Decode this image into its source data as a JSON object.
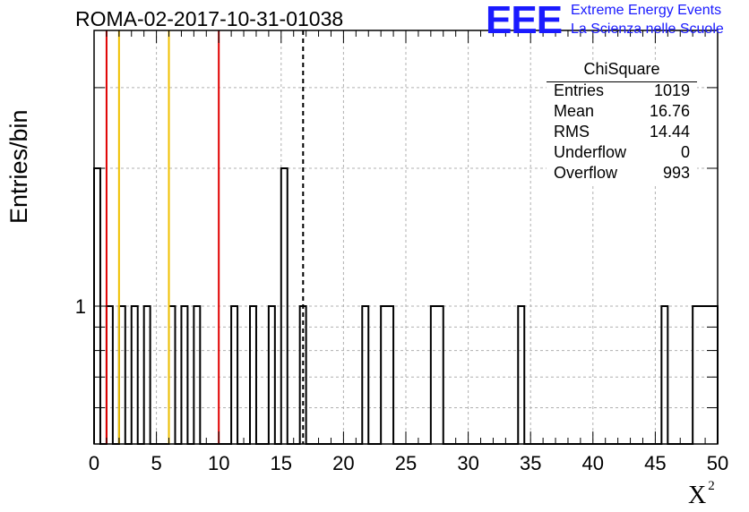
{
  "title": "ROMA-02-2017-10-31-01038",
  "logo": {
    "mark": "EEE",
    "line1": "Extreme Energy Events",
    "line2": "La Scienza nelle Scuole",
    "color": "#1a1aff"
  },
  "stats": {
    "title": "ChiSquare",
    "rows": [
      {
        "key": "Entries",
        "value": "1019"
      },
      {
        "key": "Mean",
        "value": "16.76"
      },
      {
        "key": "RMS",
        "value": "14.44"
      },
      {
        "key": "Underflow",
        "value": "0"
      },
      {
        "key": "Overflow",
        "value": "993"
      }
    ]
  },
  "chart_data": {
    "type": "bar",
    "title": "ROMA-02-2017-10-31-01038",
    "xlabel": "X",
    "xlabel_superscript": "2",
    "ylabel": "Entries/bin",
    "xlim": [
      0,
      50
    ],
    "ylim": [
      0.5,
      4
    ],
    "yscale": "log",
    "bin_width": 0.5,
    "grid": true,
    "x_ticks": [
      "0",
      "5",
      "10",
      "15",
      "20",
      "25",
      "30",
      "35",
      "40",
      "45",
      "50"
    ],
    "y_ticks": [
      "1"
    ],
    "bins": [
      {
        "x": 0.0,
        "count": 2
      },
      {
        "x": 1.0,
        "count": 1
      },
      {
        "x": 2.0,
        "count": 1
      },
      {
        "x": 3.0,
        "count": 1
      },
      {
        "x": 4.0,
        "count": 1
      },
      {
        "x": 6.0,
        "count": 1
      },
      {
        "x": 7.0,
        "count": 1
      },
      {
        "x": 8.0,
        "count": 1
      },
      {
        "x": 11.0,
        "count": 1
      },
      {
        "x": 12.5,
        "count": 1
      },
      {
        "x": 14.0,
        "count": 1
      },
      {
        "x": 15.0,
        "count": 2
      },
      {
        "x": 16.5,
        "count": 1
      },
      {
        "x": 21.5,
        "count": 1
      },
      {
        "x": 23.0,
        "count": 1
      },
      {
        "x": 23.5,
        "count": 1
      },
      {
        "x": 27.0,
        "count": 1
      },
      {
        "x": 27.5,
        "count": 1
      },
      {
        "x": 34.0,
        "count": 1
      },
      {
        "x": 45.5,
        "count": 1
      },
      {
        "x": 48.0,
        "count": 1
      },
      {
        "x": 48.5,
        "count": 1
      },
      {
        "x": 49.0,
        "count": 1
      },
      {
        "x": 49.5,
        "count": 1
      }
    ],
    "vertical_lines": [
      {
        "x": 1,
        "color": "#e00000",
        "style": "solid"
      },
      {
        "x": 2,
        "color": "#f0c000",
        "style": "solid"
      },
      {
        "x": 6,
        "color": "#f0c000",
        "style": "solid"
      },
      {
        "x": 10,
        "color": "#e00000",
        "style": "solid"
      },
      {
        "x": 16.76,
        "color": "#000000",
        "style": "dashed"
      }
    ]
  }
}
